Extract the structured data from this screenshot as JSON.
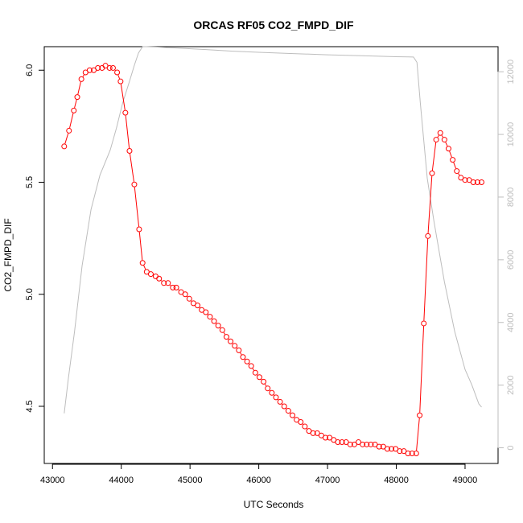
{
  "chart_data": {
    "type": "line",
    "title": "ORCAS RF05 CO2_FMPD_DIF",
    "xlabel": "UTC Seconds",
    "ylabel": "CO2_FMPD_DIF",
    "xlim": [
      42880,
      49480
    ],
    "ylim": [
      4.245,
      6.105
    ],
    "y2lim": [
      -500,
      12800
    ],
    "x_ticks": [
      43000,
      44000,
      45000,
      46000,
      47000,
      48000,
      49000
    ],
    "y_ticks": [
      4.5,
      5.0,
      5.5,
      6.0
    ],
    "y2_ticks": [
      0,
      2000,
      4000,
      6000,
      8000,
      10000,
      12000
    ],
    "x_tick_labels": [
      "43000",
      "44000",
      "45000",
      "46000",
      "47000",
      "48000",
      "49000"
    ],
    "y_tick_labels": [
      "4.5",
      "5.0",
      "5.5",
      "6.0"
    ],
    "y2_tick_labels": [
      "0",
      "2000",
      "4000",
      "6000",
      "8000",
      "10000",
      "12000"
    ],
    "series": [
      {
        "color": "#ff0000",
        "marker": "circle",
        "x": [
          43170,
          43240,
          43310,
          43360,
          43420,
          43480,
          43540,
          43600,
          43660,
          43720,
          43770,
          43830,
          43880,
          43940,
          43990,
          44060,
          44120,
          44190,
          44260,
          44310,
          44370,
          44430,
          44500,
          44550,
          44620,
          44680,
          44750,
          44800,
          44870,
          44930,
          44990,
          45050,
          45110,
          45170,
          45230,
          45290,
          45350,
          45410,
          45470,
          45530,
          45590,
          45650,
          45710,
          45770,
          45830,
          45890,
          45950,
          46010,
          46070,
          46130,
          46190,
          46250,
          46310,
          46370,
          46430,
          46490,
          46550,
          46610,
          46670,
          46730,
          46790,
          46850,
          46910,
          46970,
          47030,
          47090,
          47150,
          47210,
          47270,
          47330,
          47390,
          47450,
          47510,
          47570,
          47630,
          47690,
          47750,
          47810,
          47870,
          47930,
          47990,
          48050,
          48110,
          48170,
          48230,
          48290,
          48340,
          48400,
          48460,
          48520,
          48580,
          48640,
          48700,
          48760,
          48820,
          48880,
          48940,
          49000,
          49060,
          49120,
          49180,
          49240
        ],
        "y": [
          5.66,
          5.73,
          5.82,
          5.88,
          5.96,
          5.99,
          6.0,
          6.0,
          6.01,
          6.01,
          6.02,
          6.01,
          6.01,
          5.99,
          5.95,
          5.81,
          5.64,
          5.49,
          5.29,
          5.14,
          5.1,
          5.09,
          5.08,
          5.07,
          5.05,
          5.05,
          5.03,
          5.03,
          5.01,
          5.0,
          4.98,
          4.96,
          4.95,
          4.93,
          4.92,
          4.9,
          4.88,
          4.86,
          4.84,
          4.81,
          4.79,
          4.77,
          4.75,
          4.72,
          4.7,
          4.68,
          4.65,
          4.63,
          4.61,
          4.58,
          4.56,
          4.54,
          4.52,
          4.5,
          4.48,
          4.46,
          4.44,
          4.43,
          4.41,
          4.39,
          4.38,
          4.38,
          4.37,
          4.36,
          4.36,
          4.35,
          4.34,
          4.34,
          4.34,
          4.33,
          4.33,
          4.34,
          4.33,
          4.33,
          4.33,
          4.33,
          4.32,
          4.32,
          4.31,
          4.31,
          4.31,
          4.3,
          4.3,
          4.29,
          4.29,
          4.29,
          4.46,
          4.87,
          5.26,
          5.54,
          5.69,
          5.72,
          5.69,
          5.65,
          5.6,
          5.55,
          5.52,
          5.51,
          5.51,
          5.5,
          5.5,
          5.5
        ]
      },
      {
        "color": "#bdbdbd",
        "axis": "right",
        "x": [
          43170,
          43230,
          43320,
          43430,
          43560,
          43690,
          43840,
          43930,
          44020,
          44120,
          44190,
          44250,
          44310,
          44370,
          44500,
          44800,
          45200,
          45600,
          46000,
          46500,
          47000,
          47500,
          48000,
          48250,
          48300,
          48350,
          48400,
          48450,
          48550,
          48700,
          48850,
          49000,
          49100,
          49150,
          49200,
          49240
        ],
        "y": [
          1100,
          2200,
          3700,
          5800,
          7600,
          8700,
          9500,
          10200,
          11000,
          11700,
          12200,
          12600,
          12800,
          12800,
          12790,
          12760,
          12710,
          12660,
          12620,
          12580,
          12540,
          12510,
          12480,
          12470,
          12300,
          11000,
          9800,
          8600,
          7200,
          5300,
          3700,
          2500,
          2000,
          1700,
          1400,
          1300
        ]
      }
    ]
  }
}
